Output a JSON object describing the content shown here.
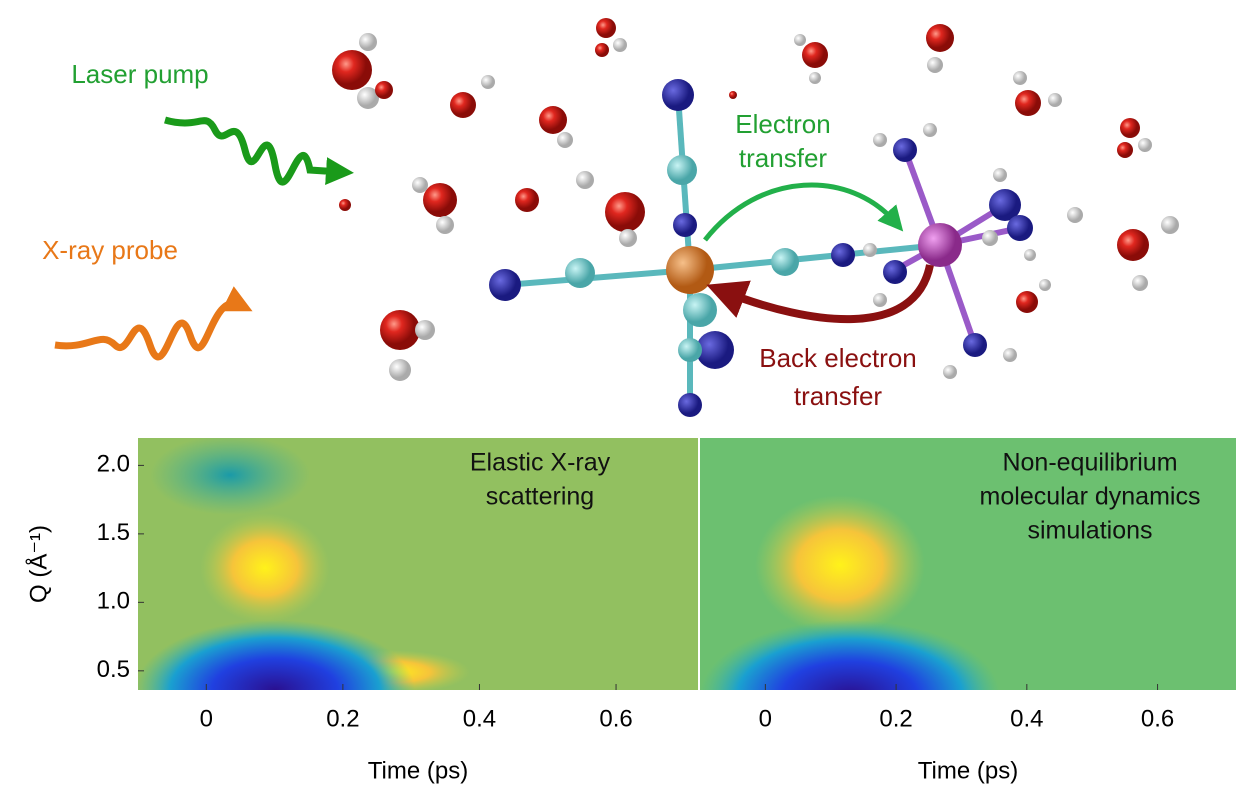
{
  "figure": {
    "laser_pump": "Laser pump",
    "xray_probe": "X-ray probe",
    "electron_transfer": [
      "Electron",
      "transfer"
    ],
    "back_electron_transfer": [
      "Back electron",
      "transfer"
    ]
  },
  "chart_data": [
    {
      "type": "heatmap",
      "annotation": [
        "Elastic X-ray",
        "scattering"
      ],
      "xlabel": "Time (ps)",
      "ylabel": "Q (Å⁻¹)",
      "xlim": [
        -0.1,
        0.72
      ],
      "xticks": [
        0,
        0.2,
        0.4,
        0.6
      ],
      "ylim": [
        0.36,
        2.2
      ],
      "yticks": [
        {
          "value": 2.0,
          "label": "2.0"
        },
        1.5,
        {
          "value": 1.0,
          "label": "1.0"
        },
        0.5
      ]
    },
    {
      "type": "heatmap",
      "annotation": [
        "Non-equilibrium",
        "molecular dynamics",
        "simulations"
      ],
      "xlabel": "Time (ps)",
      "xlim": [
        -0.1,
        0.72
      ],
      "xticks": [
        0,
        0.2,
        0.4,
        0.6
      ],
      "ylim": [
        0.36,
        2.2
      ]
    }
  ]
}
